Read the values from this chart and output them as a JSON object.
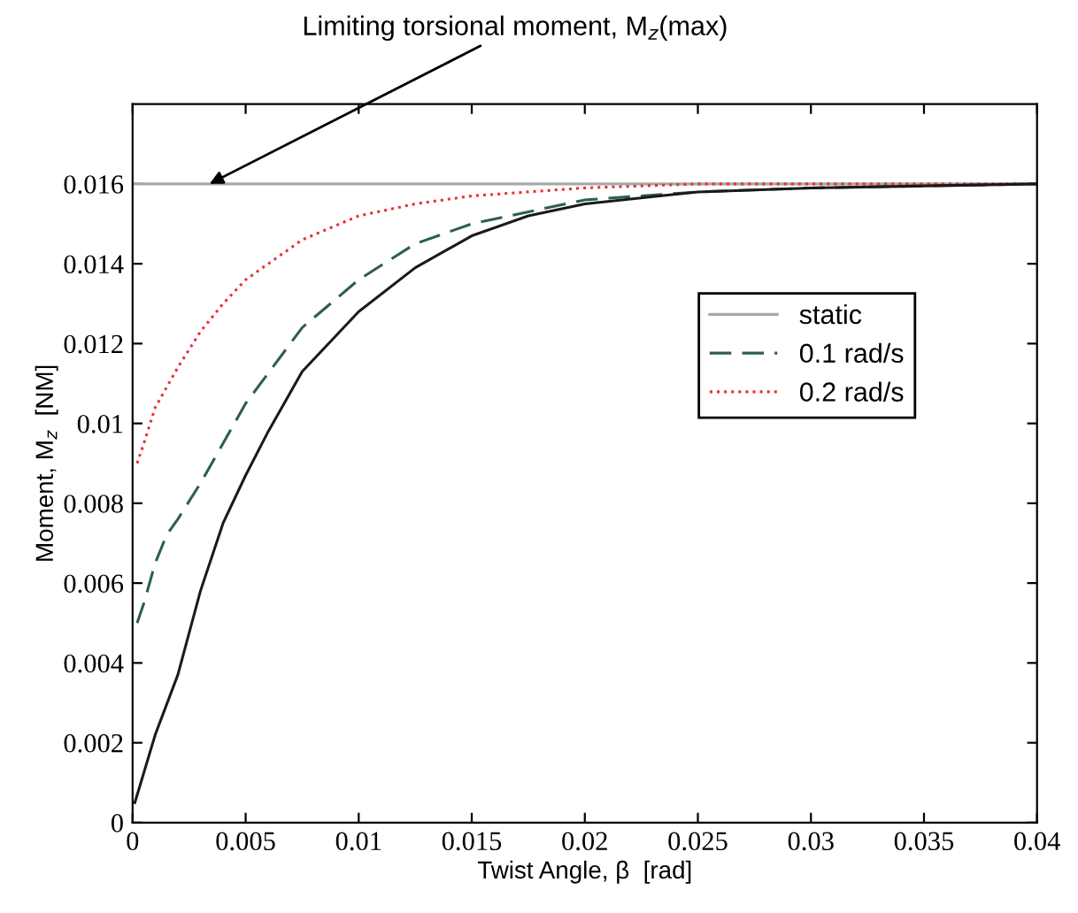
{
  "chart_data": {
    "type": "line",
    "xlabel": "Twist Angle, β  [rad]",
    "ylabel": "Moment, M$_{z}$  [NM]",
    "annotations": [
      {
        "text": "Limiting torsional moment, M$_{z}$(max)",
        "x": 0.0034,
        "y": 0.016
      }
    ],
    "xlim": [
      0,
      0.04
    ],
    "ylim": [
      0,
      0.018
    ],
    "xticks": [
      0,
      0.005,
      0.01,
      0.015,
      0.02,
      0.025,
      0.03,
      0.035,
      0.04
    ],
    "yticks": [
      0,
      0.002,
      0.004,
      0.006,
      0.008,
      0.01,
      0.012,
      0.014,
      0.016
    ],
    "grid": false,
    "legend": "center right",
    "series": [
      {
        "name": "static",
        "color": "#a8a8a8",
        "line_style": "solid",
        "x": [
          0,
          0.04
        ],
        "values": [
          0.016,
          0.016
        ]
      },
      {
        "name": "0.1 rad/s",
        "color": "#2e5e4e",
        "line_style": "dashed",
        "x": [
          0.0002,
          0.0005,
          0.001,
          0.0015,
          0.002,
          0.003,
          0.004,
          0.005,
          0.0075,
          0.01,
          0.0125,
          0.015,
          0.0175,
          0.02,
          0.025,
          0.03,
          0.04
        ],
        "values": [
          0.005,
          0.0055,
          0.0065,
          0.0072,
          0.0076,
          0.0085,
          0.0095,
          0.0105,
          0.0124,
          0.0136,
          0.0145,
          0.015,
          0.0153,
          0.0156,
          0.0158,
          0.0159,
          0.016
        ]
      },
      {
        "name": "0.2 rad/s",
        "color": "#e8303a",
        "line_style": "dotted",
        "x": [
          0.0002,
          0.0005,
          0.001,
          0.002,
          0.003,
          0.004,
          0.005,
          0.0075,
          0.01,
          0.0125,
          0.015,
          0.02,
          0.025,
          0.04
        ],
        "values": [
          0.009,
          0.0095,
          0.0104,
          0.0114,
          0.0123,
          0.013,
          0.0136,
          0.0146,
          0.0152,
          0.0155,
          0.0157,
          0.0159,
          0.016,
          0.016
        ]
      },
      {
        "color": "#1a1a1a",
        "line_style": "solid",
        "x": [
          0.0001,
          0.001,
          0.002,
          0.003,
          0.004,
          0.005,
          0.006,
          0.0075,
          0.01,
          0.0125,
          0.015,
          0.0175,
          0.02,
          0.025,
          0.03,
          0.04
        ],
        "values": [
          0.0005,
          0.0022,
          0.0037,
          0.0058,
          0.0075,
          0.0087,
          0.0098,
          0.0113,
          0.0128,
          0.0139,
          0.0147,
          0.0152,
          0.0155,
          0.0158,
          0.0159,
          0.016
        ]
      }
    ]
  }
}
